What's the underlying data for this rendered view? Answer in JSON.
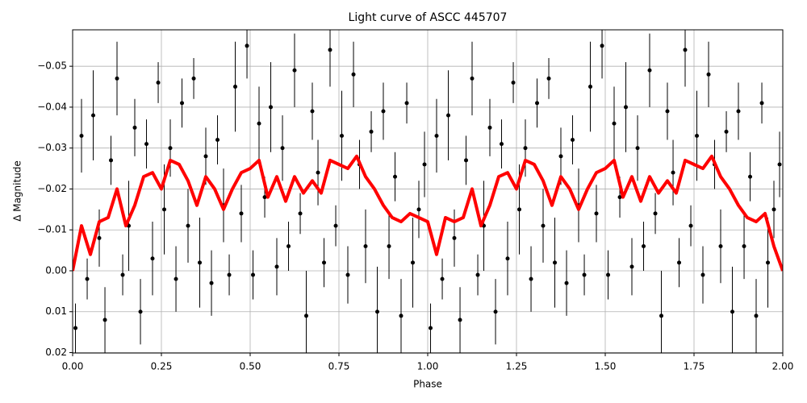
{
  "chart_data": {
    "type": "scatter",
    "title": "Light curve of ASCC 445707",
    "xlabel": "Phase",
    "ylabel": "Δ Magnitude",
    "xlim": [
      0,
      2
    ],
    "ylim": [
      0.0201,
      -0.0589
    ],
    "xticks": [
      {
        "value": 0,
        "label": "0.00"
      },
      {
        "value": 0.25,
        "label": "0.25"
      },
      {
        "value": 0.5,
        "label": "0.50"
      },
      {
        "value": 0.75,
        "label": "0.75"
      },
      {
        "value": 1,
        "label": "1.00"
      },
      {
        "value": 1.25,
        "label": "1.25"
      },
      {
        "value": 1.5,
        "label": "1.50"
      },
      {
        "value": 1.75,
        "label": "1.75"
      },
      {
        "value": 2,
        "label": "2.00"
      }
    ],
    "yticks": [
      {
        "value": -0.05,
        "label": "−0.05"
      },
      {
        "value": -0.04,
        "label": "−0.04"
      },
      {
        "value": -0.03,
        "label": "−0.03"
      },
      {
        "value": -0.02,
        "label": "−0.02"
      },
      {
        "value": -0.01,
        "label": "−0.01"
      },
      {
        "value": 0,
        "label": "0.00"
      },
      {
        "value": 0.01,
        "label": "0.01"
      },
      {
        "value": 0.02,
        "label": "0.02"
      }
    ],
    "grid": true,
    "points": {
      "color": "#000000",
      "x": [
        0.008,
        0.025,
        0.041,
        0.058,
        0.075,
        0.091,
        0.108,
        0.125,
        0.141,
        0.158,
        0.175,
        0.191,
        0.208,
        0.225,
        0.241,
        0.258,
        0.275,
        0.291,
        0.308,
        0.325,
        0.341,
        0.358,
        0.375,
        0.391,
        0.408,
        0.425,
        0.441,
        0.458,
        0.475,
        0.491,
        0.508,
        0.525,
        0.541,
        0.558,
        0.575,
        0.591,
        0.608,
        0.625,
        0.641,
        0.658,
        0.675,
        0.691,
        0.708,
        0.725,
        0.741,
        0.758,
        0.775,
        0.791,
        0.808,
        0.825,
        0.841,
        0.858,
        0.875,
        0.891,
        0.908,
        0.925,
        0.941,
        0.958,
        0.975,
        0.991,
        1.008,
        1.025,
        1.041,
        1.058,
        1.075,
        1.091,
        1.108,
        1.125,
        1.141,
        1.158,
        1.175,
        1.191,
        1.208,
        1.225,
        1.241,
        1.258,
        1.275,
        1.291,
        1.308,
        1.325,
        1.341,
        1.358,
        1.375,
        1.391,
        1.408,
        1.425,
        1.441,
        1.458,
        1.475,
        1.491,
        1.508,
        1.525,
        1.541,
        1.558,
        1.575,
        1.591,
        1.608,
        1.625,
        1.641,
        1.658,
        1.675,
        1.691,
        1.708,
        1.725,
        1.741,
        1.758,
        1.775,
        1.791,
        1.808,
        1.825,
        1.841,
        1.858,
        1.875,
        1.891,
        1.908,
        1.925,
        1.941,
        1.958,
        1.975,
        1.991
      ],
      "y": [
        0.014,
        -0.033,
        0.002,
        -0.038,
        -0.008,
        0.012,
        -0.027,
        -0.047,
        0.001,
        -0.011,
        -0.035,
        0.01,
        -0.031,
        -0.003,
        -0.046,
        -0.015,
        -0.03,
        0.002,
        -0.041,
        -0.011,
        -0.047,
        -0.002,
        -0.028,
        0.003,
        -0.032,
        -0.016,
        0.001,
        -0.045,
        -0.014,
        -0.055,
        0.001,
        -0.036,
        -0.018,
        -0.04,
        -0.001,
        -0.03,
        -0.006,
        -0.049,
        -0.014,
        0.011,
        -0.039,
        -0.024,
        -0.002,
        -0.054,
        -0.011,
        -0.033,
        0.001,
        -0.048,
        -0.026,
        -0.006,
        -0.034,
        0.01,
        -0.039,
        -0.006,
        -0.023,
        0.011,
        -0.041,
        -0.002,
        -0.015,
        -0.026,
        0.014,
        -0.033,
        0.002,
        -0.038,
        -0.008,
        0.012,
        -0.027,
        -0.047,
        0.001,
        -0.011,
        -0.035,
        0.01,
        -0.031,
        -0.003,
        -0.046,
        -0.015,
        -0.03,
        0.002,
        -0.041,
        -0.011,
        -0.047,
        -0.002,
        -0.028,
        0.003,
        -0.032,
        -0.016,
        0.001,
        -0.045,
        -0.014,
        -0.055,
        0.001,
        -0.036,
        -0.018,
        -0.04,
        -0.001,
        -0.03,
        -0.006,
        -0.049,
        -0.014,
        0.011,
        -0.039,
        -0.024,
        -0.002,
        -0.054,
        -0.011,
        -0.033,
        0.001,
        -0.048,
        -0.026,
        -0.006,
        -0.034,
        0.01,
        -0.039,
        -0.006,
        -0.023,
        0.011,
        -0.041,
        -0.002,
        -0.015,
        -0.026
      ],
      "yerr": [
        0.006,
        0.009,
        0.005,
        0.011,
        0.007,
        0.008,
        0.006,
        0.009,
        0.005,
        0.011,
        0.007,
        0.008,
        0.006,
        0.009,
        0.005,
        0.011,
        0.007,
        0.008,
        0.006,
        0.009,
        0.005,
        0.011,
        0.007,
        0.008,
        0.006,
        0.009,
        0.005,
        0.011,
        0.007,
        0.008,
        0.006,
        0.009,
        0.005,
        0.011,
        0.007,
        0.008,
        0.006,
        0.009,
        0.005,
        0.011,
        0.007,
        0.008,
        0.006,
        0.009,
        0.005,
        0.011,
        0.007,
        0.008,
        0.006,
        0.009,
        0.005,
        0.011,
        0.007,
        0.008,
        0.006,
        0.009,
        0.005,
        0.011,
        0.007,
        0.008,
        0.006,
        0.009,
        0.005,
        0.011,
        0.007,
        0.008,
        0.006,
        0.009,
        0.005,
        0.011,
        0.007,
        0.008,
        0.006,
        0.009,
        0.005,
        0.011,
        0.007,
        0.008,
        0.006,
        0.009,
        0.005,
        0.011,
        0.007,
        0.008,
        0.006,
        0.009,
        0.005,
        0.011,
        0.007,
        0.008,
        0.006,
        0.009,
        0.005,
        0.011,
        0.007,
        0.008,
        0.006,
        0.009,
        0.005,
        0.011,
        0.007,
        0.008,
        0.006,
        0.009,
        0.005,
        0.011,
        0.007,
        0.008,
        0.006,
        0.009,
        0.005,
        0.011,
        0.007,
        0.008,
        0.006,
        0.009,
        0.005,
        0.011,
        0.007,
        0.008
      ]
    },
    "line": {
      "color": "#ff0000",
      "x": [
        0,
        0.025,
        0.05,
        0.075,
        0.1,
        0.125,
        0.15,
        0.175,
        0.2,
        0.225,
        0.25,
        0.275,
        0.3,
        0.325,
        0.35,
        0.375,
        0.4,
        0.425,
        0.45,
        0.475,
        0.5,
        0.525,
        0.55,
        0.575,
        0.6,
        0.625,
        0.65,
        0.675,
        0.7,
        0.725,
        0.75,
        0.775,
        0.8,
        0.825,
        0.85,
        0.875,
        0.9,
        0.925,
        0.95,
        0.975,
        1,
        1.025,
        1.05,
        1.075,
        1.1,
        1.125,
        1.15,
        1.175,
        1.2,
        1.225,
        1.25,
        1.275,
        1.3,
        1.325,
        1.35,
        1.375,
        1.4,
        1.425,
        1.45,
        1.475,
        1.5,
        1.525,
        1.55,
        1.575,
        1.6,
        1.625,
        1.65,
        1.675,
        1.7,
        1.725,
        1.75,
        1.775,
        1.8,
        1.825,
        1.85,
        1.875,
        1.9,
        1.925,
        1.95,
        1.975,
        2
      ],
      "y": [
        0.0,
        -0.011,
        -0.004,
        -0.012,
        -0.013,
        -0.02,
        -0.011,
        -0.016,
        -0.023,
        -0.024,
        -0.02,
        -0.027,
        -0.026,
        -0.022,
        -0.016,
        -0.023,
        -0.02,
        -0.015,
        -0.02,
        -0.024,
        -0.025,
        -0.027,
        -0.018,
        -0.023,
        -0.017,
        -0.023,
        -0.019,
        -0.022,
        -0.019,
        -0.027,
        -0.026,
        -0.025,
        -0.028,
        -0.023,
        -0.02,
        -0.016,
        -0.013,
        -0.012,
        -0.014,
        -0.013,
        -0.012,
        -0.004,
        -0.013,
        -0.012,
        -0.013,
        -0.02,
        -0.011,
        -0.016,
        -0.023,
        -0.024,
        -0.02,
        -0.027,
        -0.026,
        -0.022,
        -0.016,
        -0.023,
        -0.02,
        -0.015,
        -0.02,
        -0.024,
        -0.025,
        -0.027,
        -0.018,
        -0.023,
        -0.017,
        -0.023,
        -0.019,
        -0.022,
        -0.019,
        -0.027,
        -0.026,
        -0.025,
        -0.028,
        -0.023,
        -0.02,
        -0.016,
        -0.013,
        -0.012,
        -0.014,
        -0.006,
        0.0
      ]
    }
  }
}
